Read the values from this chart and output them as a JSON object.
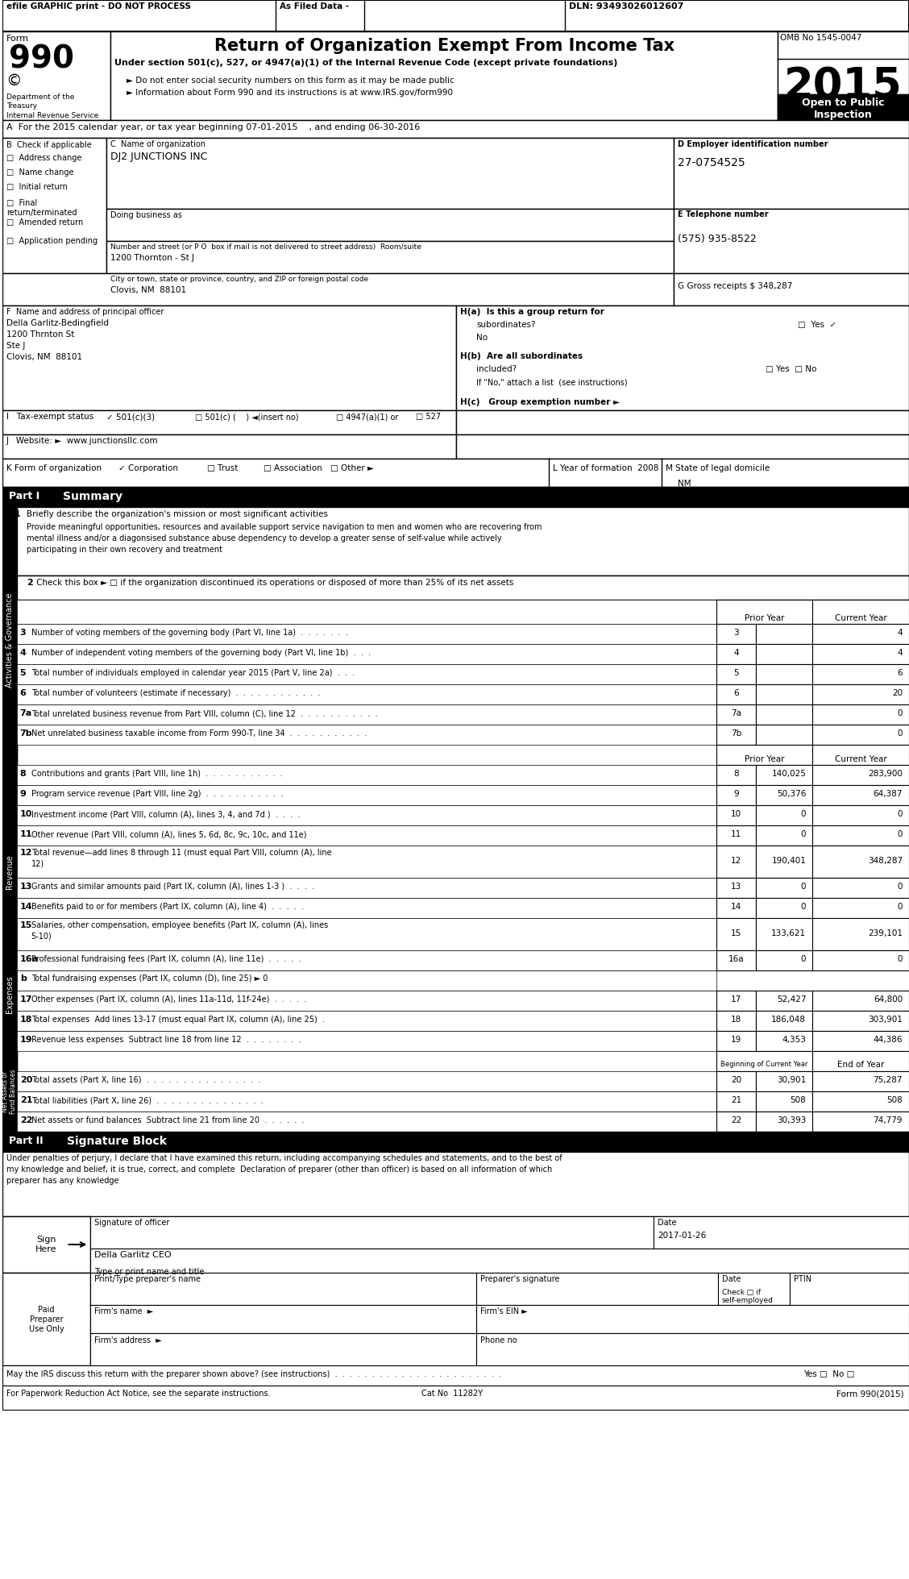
{
  "title_bar_text": "efile GRAPHIC print - DO NOT PROCESS    As Filed Data -                                        DLN: 93493026012607",
  "form_number": "990",
  "form_label": "Form",
  "dept_line1": "Department of the",
  "dept_line2": "Treasury",
  "dept_line3": "Internal Revenue Service",
  "main_title": "Return of Organization Exempt From Income Tax",
  "subtitle": "Under section 501(c), 527, or 4947(a)(1) of the Internal Revenue Code (except private foundations)",
  "bullet1": "► Do not enter social security numbers on this form as it may be made public",
  "bullet2": "► Information about Form 990 and its instructions is at www.IRS.gov/form990",
  "omb_label": "OMB No 1545-0047",
  "year": "2015",
  "open_public": "Open to Public\nInspection",
  "section_a": "A  For the 2015 calendar year, or tax year beginning 07-01-2015    , and ending 06-30-2016",
  "check_items": [
    "Address change",
    "Name change",
    "Initial return",
    "Final\nreturn/terminated",
    "Amended return",
    "Application pending"
  ],
  "section_c_label": "C  Name of organization",
  "org_name": "DJ2 JUNCTIONS INC",
  "doing_business_as": "Doing business as",
  "street_label": "Number and street (or P O  box if mail is not delivered to street address)  Room/suite",
  "street": "1200 Thornton - St J",
  "city_label": "City or town, state or province, country, and ZIP or foreign postal code",
  "city": "Clovis, NM  88101",
  "section_d_label": "D Employer identification number",
  "ein": "27-0754525",
  "section_e_label": "E Telephone number",
  "phone": "(575) 935-8522",
  "section_g_label": "G Gross receipts $ 348,287",
  "section_f_label": "F  Name and address of principal officer",
  "principal_name": "Della Garlitz-Bedingfield",
  "principal_addr1": "1200 Thrnton St",
  "principal_addr2": "Ste J",
  "principal_addr3": "Clovis, NM  88101",
  "hc_label": "H(c)   Group exemption number ►",
  "website": "www.junctionsllc.com",
  "l_value": "2008",
  "m_value": "NM",
  "part1_label": "Part I",
  "part1_title": "Summary",
  "line1_text": "Briefly describe the organization's mission or most significant activities",
  "mission_line1": "Provide meaningful opportunities, resources and available support service navigation to men and women who are recovering from",
  "mission_line2": "mental illness and/or a diagonsised substance abuse dependency to develop a greater sense of self-value while actively",
  "mission_line3": "participating in their own recovery and treatment",
  "line2_text": "Check this box ► □ if the organization discontinued its operations or disposed of more than 25% of its net assets",
  "line3_text": "Number of voting members of the governing body (Part VI, line 1a)  .  .  .  .  .  .  .",
  "line3_val": "4",
  "line4_text": "Number of independent voting members of the governing body (Part VI, line 1b)  .  .  .",
  "line4_val": "4",
  "line5_text": "Total number of individuals employed in calendar year 2015 (Part V, line 2a)  .  .  .",
  "line5_val": "6",
  "line6_text": "Total number of volunteers (estimate if necessary)  .  .  .  .  .  .  .  .  .  .  .  .",
  "line6_val": "20",
  "line7a_text": "Total unrelated business revenue from Part VIII, column (C), line 12  .  .  .  .  .  .  .  .  .  .  .",
  "line7a_val": "0",
  "line7b_text": "Net unrelated business taxable income from Form 990-T, line 34  .  .  .  .  .  .  .  .  .  .  .",
  "line7b_val": "0",
  "prior_year_label": "Prior Year",
  "current_year_label": "Current Year",
  "line8_text": "Contributions and grants (Part VIII, line 1h)  .  .  .  .  .  .  .  .  .  .  .",
  "line8_prior": "140,025",
  "line8_current": "283,900",
  "line9_text": "Program service revenue (Part VIII, line 2g)  .  .  .  .  .  .  .  .  .  .  .",
  "line9_prior": "50,376",
  "line9_current": "64,387",
  "line10_text": "Investment income (Part VIII, column (A), lines 3, 4, and 7d )  .  .  .  .",
  "line10_prior": "0",
  "line10_current": "0",
  "line11_text": "Other revenue (Part VIII, column (A), lines 5, 6d, 8c, 9c, 10c, and 11e)",
  "line11_prior": "0",
  "line11_current": "0",
  "line12_text1": "Total revenue—add lines 8 through 11 (must equal Part VIII, column (A), line",
  "line12_text2": "12)",
  "line12_prior": "190,401",
  "line12_current": "348,287",
  "line13_text": "Grants and similar amounts paid (Part IX, column (A), lines 1-3 )  .  .  .  .",
  "line13_prior": "0",
  "line13_current": "0",
  "line14_text": "Benefits paid to or for members (Part IX, column (A), line 4)  .  .  .  .  .",
  "line14_prior": "0",
  "line14_current": "0",
  "line15_text1": "Salaries, other compensation, employee benefits (Part IX, column (A), lines",
  "line15_text2": "5-10)",
  "line15_prior": "133,621",
  "line15_current": "239,101",
  "line16a_text": "Professional fundraising fees (Part IX, column (A), line 11e)  .  .  .  .  .",
  "line16a_prior": "0",
  "line16a_current": "0",
  "line16b_text": "Total fundraising expenses (Part IX, column (D), line 25) ► 0",
  "line17_text": "Other expenses (Part IX, column (A), lines 11a-11d, 11f-24e)  .  .  .  .  .",
  "line17_prior": "52,427",
  "line17_current": "64,800",
  "line18_text": "Total expenses  Add lines 13-17 (must equal Part IX, column (A), line 25)  .",
  "line18_prior": "186,048",
  "line18_current": "303,901",
  "line19_text": "Revenue less expenses  Subtract line 18 from line 12  .  .  .  .  .  .  .  .",
  "line19_prior": "4,353",
  "line19_current": "44,386",
  "boc_label": "Beginning of Current Year",
  "eoy_label": "End of Year",
  "line20_text": "Total assets (Part X, line 16)  .  .  .  .  .  .  .  .  .  .  .  .  .  .  .  .",
  "line20_boc": "30,901",
  "line20_eoy": "75,287",
  "line21_text": "Total liabilities (Part X, line 26)  .  .  .  .  .  .  .  .  .  .  .  .  .  .  .",
  "line21_boc": "508",
  "line21_eoy": "508",
  "line22_text": "Net assets or fund balances  Subtract line 21 from line 20  .  .  .  .  .  .",
  "line22_boc": "30,393",
  "line22_eoy": "74,779",
  "part2_label": "Part II",
  "part2_title": "Signature Block",
  "sig_line1": "Under penalties of perjury, I declare that I have examined this return, including accompanying schedules and statements, and to the best of",
  "sig_line2": "my knowledge and belief, it is true, correct, and complete  Declaration of preparer (other than officer) is based on all information of which",
  "sig_line3": "preparer has any knowledge",
  "signature_label": "Signature of officer",
  "date_label": "Date",
  "date_value": "2017-01-26",
  "officer_name": "Della Garlitz CEO",
  "officer_title_label": "Type or print name and title",
  "preparer_name_label": "Print/Type preparer's name",
  "preparer_sig_label": "Preparer's signature",
  "ptin_label": "PTIN",
  "discuss_line": "May the IRS discuss this return with the preparer shown above? (see instructions)  .  .  .  .  .  .  .  .  .  .  .  .  .  .  .  .  .  .  .  .  .  .  .",
  "paperwork_line": "For Paperwork Reduction Act Notice, see the separate instructions.",
  "cat_no": "Cat No  11282Y",
  "form_footer": "Form 990(2015)",
  "bg_color": "#ffffff",
  "border_color": "#000000"
}
